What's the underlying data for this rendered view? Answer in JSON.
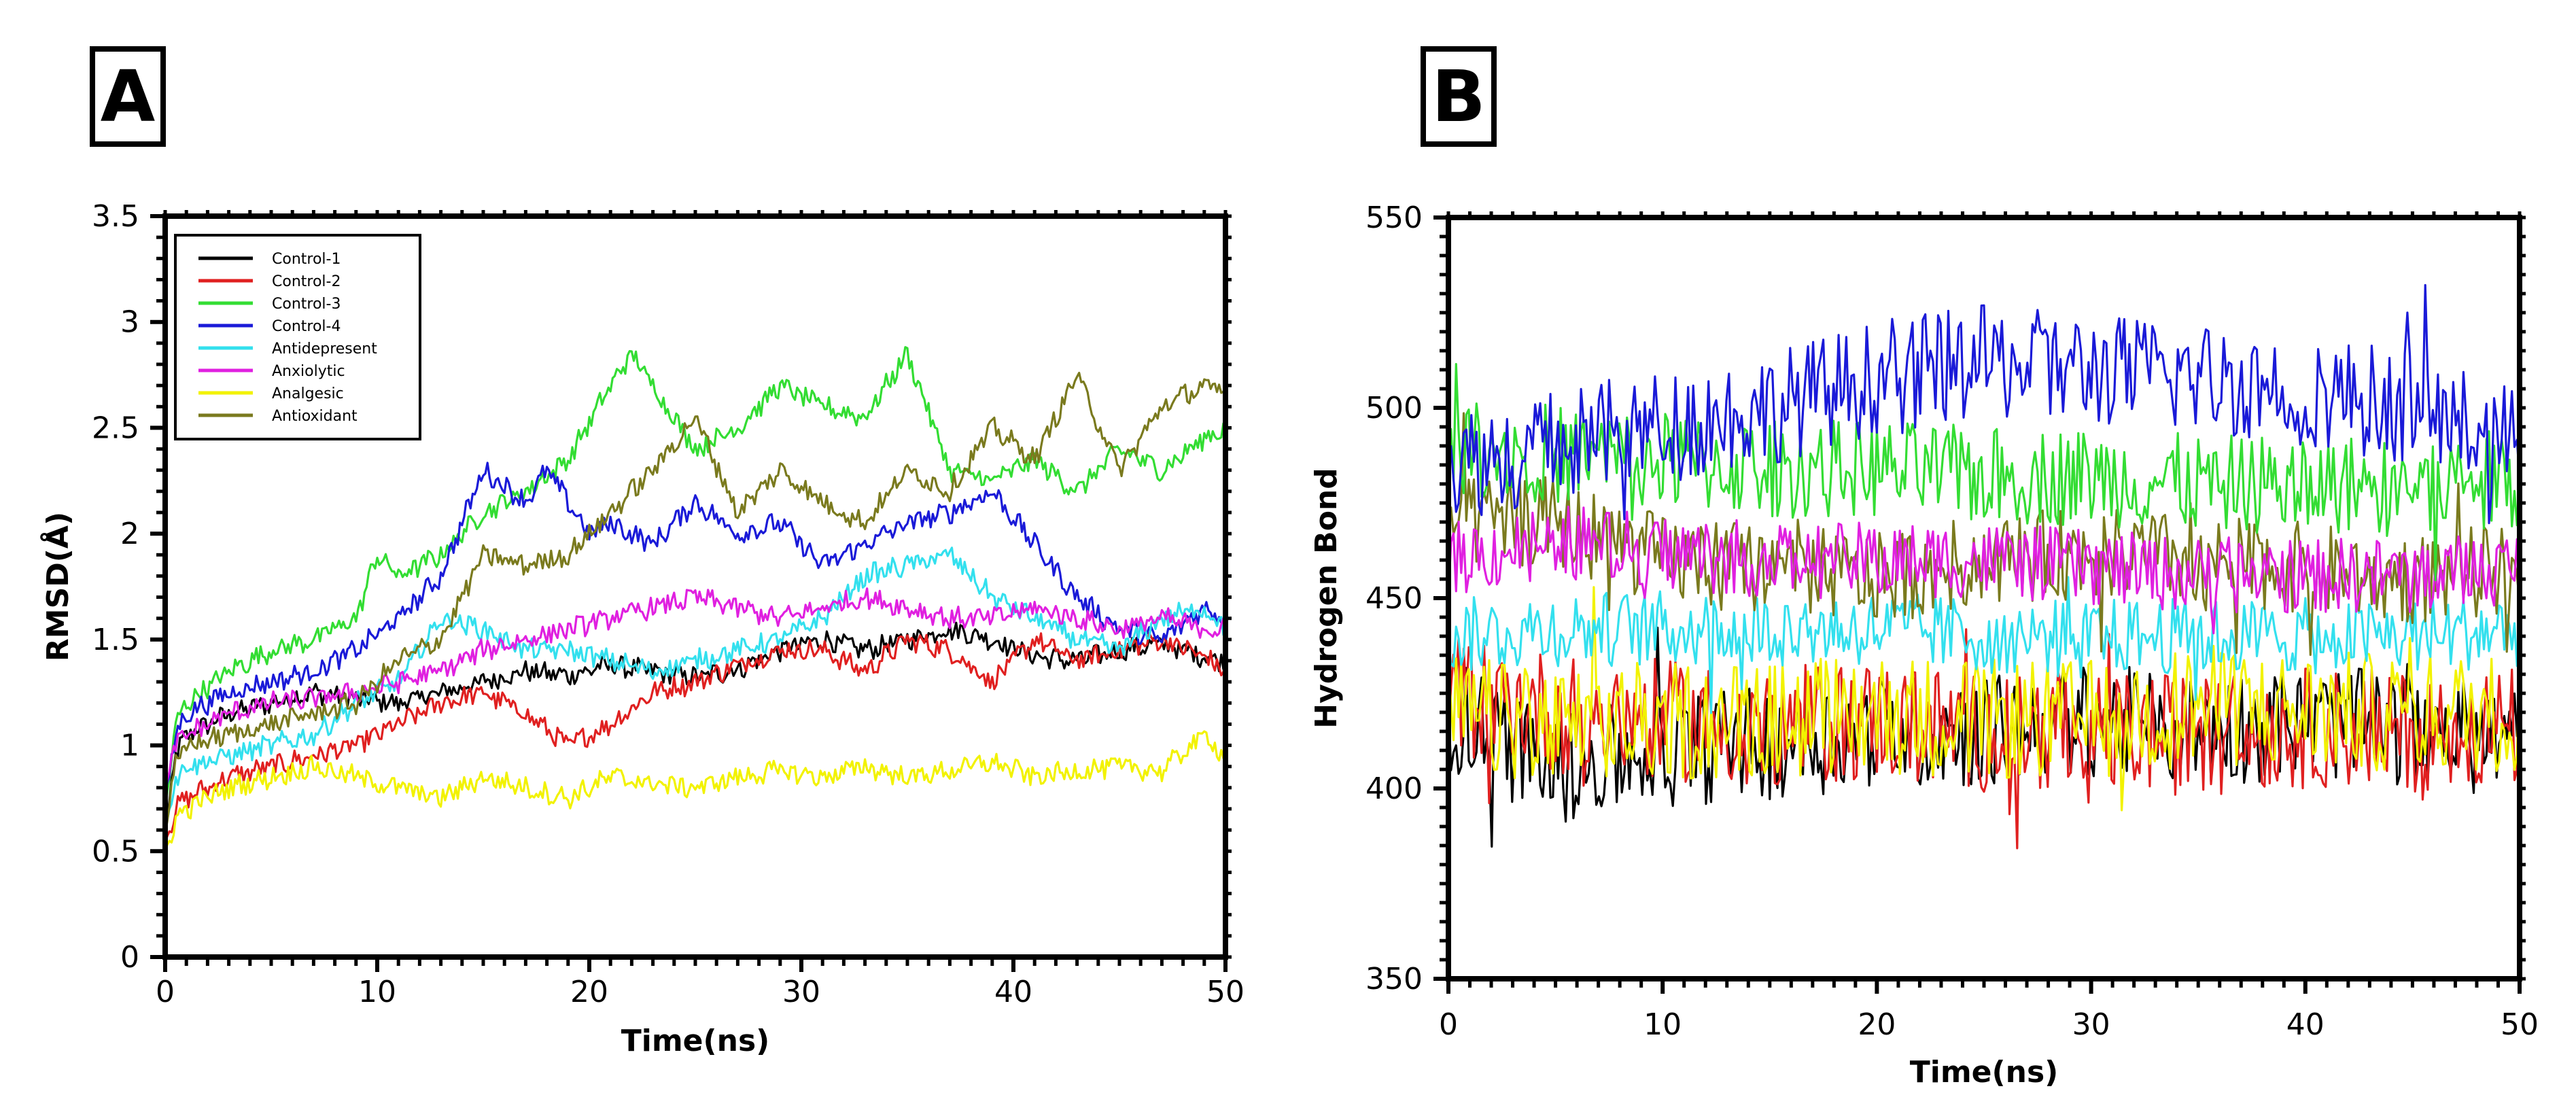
{
  "chart_data": [
    {
      "panel": "A",
      "type": "line",
      "title": "",
      "xlabel": "Time(ns)",
      "ylabel": "RMSD(Å)",
      "xlim": [
        0,
        50
      ],
      "ylim": [
        0,
        3.5
      ],
      "xticks": [
        "0",
        "10",
        "20",
        "30",
        "40",
        "50"
      ],
      "yticks": [
        "0",
        "0.5",
        "1",
        "1.5",
        "2",
        "2.5",
        "3",
        "3.5"
      ],
      "legend_position": "top-left",
      "grid": false,
      "series": [
        {
          "name": "Control-1",
          "color": "#000000",
          "x": [
            0,
            0.5,
            1,
            3,
            5,
            7,
            9,
            11,
            13,
            15,
            17,
            19,
            21,
            23,
            25,
            27,
            29,
            31,
            33,
            35,
            37,
            39,
            41,
            43,
            45,
            47,
            49,
            50
          ],
          "y": [
            0.6,
            0.95,
            1.05,
            1.15,
            1.2,
            1.25,
            1.22,
            1.2,
            1.25,
            1.3,
            1.35,
            1.33,
            1.38,
            1.35,
            1.32,
            1.36,
            1.45,
            1.5,
            1.45,
            1.5,
            1.55,
            1.5,
            1.42,
            1.4,
            1.45,
            1.48,
            1.42,
            1.4
          ]
        },
        {
          "name": "Control-2",
          "color": "#e02020",
          "x": [
            0,
            0.5,
            1,
            3,
            5,
            7,
            9,
            11,
            13,
            15,
            17,
            19,
            21,
            23,
            25,
            27,
            29,
            31,
            33,
            35,
            37,
            39,
            41,
            43,
            45,
            47,
            49,
            50
          ],
          "y": [
            0.55,
            0.7,
            0.75,
            0.85,
            0.9,
            0.95,
            1.0,
            1.1,
            1.2,
            1.25,
            1.15,
            1.0,
            1.1,
            1.25,
            1.3,
            1.38,
            1.45,
            1.45,
            1.35,
            1.5,
            1.45,
            1.3,
            1.5,
            1.4,
            1.45,
            1.5,
            1.42,
            1.35
          ]
        },
        {
          "name": "Control-3",
          "color": "#33dd33",
          "x": [
            0,
            0.5,
            1,
            3,
            5,
            7,
            9,
            10,
            11,
            13,
            15,
            17,
            19,
            21,
            22,
            23,
            25,
            27,
            29,
            31,
            33,
            35,
            37,
            39,
            41,
            43,
            45,
            47,
            49,
            50
          ],
          "y": [
            0.7,
            1.1,
            1.2,
            1.35,
            1.45,
            1.5,
            1.6,
            1.9,
            1.8,
            1.9,
            2.1,
            2.2,
            2.35,
            2.7,
            2.85,
            2.7,
            2.4,
            2.5,
            2.7,
            2.6,
            2.55,
            2.85,
            2.3,
            2.25,
            2.35,
            2.2,
            2.4,
            2.3,
            2.45,
            2.5
          ]
        },
        {
          "name": "Control-4",
          "color": "#1a1ad8",
          "x": [
            0,
            0.5,
            1,
            3,
            5,
            7,
            9,
            11,
            13,
            15,
            17,
            18,
            20,
            21,
            23,
            25,
            27,
            29,
            31,
            33,
            35,
            37,
            39,
            41,
            43,
            45,
            47,
            49,
            50
          ],
          "y": [
            0.75,
            1.05,
            1.15,
            1.25,
            1.3,
            1.35,
            1.45,
            1.6,
            1.8,
            2.3,
            2.15,
            2.3,
            2.0,
            2.05,
            1.95,
            2.15,
            2.0,
            2.05,
            1.85,
            1.95,
            2.05,
            2.1,
            2.2,
            1.95,
            1.7,
            1.55,
            1.5,
            1.65,
            1.6
          ]
        },
        {
          "name": "Antidepresent",
          "color": "#33e0ee",
          "x": [
            0,
            0.5,
            1,
            3,
            5,
            7,
            9,
            11,
            13,
            15,
            17,
            19,
            21,
            23,
            25,
            27,
            29,
            31,
            33,
            35,
            37,
            39,
            41,
            43,
            45,
            47,
            49,
            50
          ],
          "y": [
            0.6,
            0.85,
            0.9,
            0.95,
            1.0,
            1.05,
            1.2,
            1.3,
            1.6,
            1.55,
            1.45,
            1.45,
            1.4,
            1.35,
            1.4,
            1.45,
            1.5,
            1.6,
            1.8,
            1.85,
            1.9,
            1.7,
            1.6,
            1.5,
            1.45,
            1.6,
            1.65,
            1.55
          ]
        },
        {
          "name": "Anxiolytic",
          "color": "#e020e0",
          "x": [
            0,
            0.5,
            1,
            3,
            5,
            7,
            9,
            11,
            13,
            15,
            17,
            19,
            21,
            23,
            25,
            27,
            29,
            31,
            33,
            35,
            37,
            39,
            41,
            43,
            45,
            47,
            49,
            50
          ],
          "y": [
            0.8,
            1.0,
            1.05,
            1.15,
            1.2,
            1.22,
            1.25,
            1.3,
            1.35,
            1.45,
            1.5,
            1.55,
            1.6,
            1.65,
            1.7,
            1.65,
            1.6,
            1.65,
            1.7,
            1.65,
            1.6,
            1.6,
            1.65,
            1.6,
            1.55,
            1.6,
            1.55,
            1.55
          ]
        },
        {
          "name": "Analgesic",
          "color": "#f2f200",
          "x": [
            0,
            0.5,
            1,
            3,
            5,
            7,
            9,
            11,
            13,
            15,
            17,
            19,
            21,
            23,
            25,
            27,
            29,
            31,
            33,
            35,
            37,
            39,
            41,
            43,
            45,
            47,
            49,
            50
          ],
          "y": [
            0.5,
            0.65,
            0.7,
            0.8,
            0.85,
            0.9,
            0.85,
            0.8,
            0.75,
            0.85,
            0.8,
            0.75,
            0.85,
            0.82,
            0.8,
            0.85,
            0.88,
            0.85,
            0.9,
            0.85,
            0.88,
            0.92,
            0.85,
            0.88,
            0.9,
            0.88,
            1.05,
            0.95
          ]
        },
        {
          "name": "Antioxidant",
          "color": "#7a7a1e",
          "x": [
            0,
            0.5,
            1,
            3,
            5,
            7,
            9,
            11,
            13,
            15,
            17,
            19,
            21,
            23,
            25,
            27,
            29,
            31,
            33,
            35,
            37,
            39,
            41,
            43,
            45,
            47,
            49,
            50
          ],
          "y": [
            0.6,
            0.9,
            1.0,
            1.05,
            1.1,
            1.15,
            1.2,
            1.4,
            1.5,
            1.9,
            1.85,
            1.9,
            2.1,
            2.3,
            2.55,
            2.1,
            2.3,
            2.15,
            2.05,
            2.3,
            2.2,
            2.5,
            2.35,
            2.75,
            2.3,
            2.6,
            2.7,
            2.65
          ]
        }
      ]
    },
    {
      "panel": "B",
      "type": "line",
      "title": "",
      "xlabel": "Time(ns)",
      "ylabel": "Hydrogen Bond",
      "xlim": [
        0,
        50
      ],
      "ylim": [
        350,
        550
      ],
      "xticks": [
        "0",
        "10",
        "20",
        "30",
        "40",
        "50"
      ],
      "yticks": [
        "350",
        "400",
        "450",
        "500",
        "550"
      ],
      "legend_position": "none",
      "grid": false,
      "series": [
        {
          "name": "Control-1",
          "color": "#000000",
          "x": [
            0,
            5,
            10,
            15,
            20,
            25,
            30,
            35,
            40,
            45,
            50
          ],
          "y": [
            420,
            405,
            410,
            412,
            415,
            415,
            418,
            415,
            418,
            415,
            412
          ],
          "spread": 15
        },
        {
          "name": "Control-2",
          "color": "#e02020",
          "x": [
            0,
            5,
            10,
            15,
            20,
            25,
            30,
            35,
            40,
            45,
            50
          ],
          "y": [
            425,
            420,
            418,
            416,
            418,
            415,
            415,
            414,
            416,
            415,
            416
          ],
          "spread": 16
        },
        {
          "name": "Analgesic",
          "color": "#f2f200",
          "x": [
            0,
            5,
            10,
            15,
            20,
            25,
            30,
            35,
            40,
            45,
            50
          ],
          "y": [
            420,
            415,
            418,
            418,
            420,
            418,
            418,
            422,
            420,
            420,
            420
          ],
          "spread": 16
        },
        {
          "name": "Antidepresent",
          "color": "#33e0ee",
          "x": [
            0,
            5,
            10,
            15,
            20,
            25,
            30,
            35,
            40,
            45,
            50
          ],
          "y": [
            440,
            442,
            442,
            442,
            442,
            440,
            440,
            440,
            440,
            440,
            442
          ],
          "spread": 10
        },
        {
          "name": "Antioxidant",
          "color": "#7a7a1e",
          "x": [
            0,
            5,
            10,
            15,
            20,
            25,
            30,
            35,
            40,
            45,
            50
          ],
          "y": [
            470,
            470,
            460,
            458,
            455,
            460,
            462,
            460,
            458,
            455,
            458
          ],
          "spread": 12
        },
        {
          "name": "Anxiolytic",
          "color": "#e020e0",
          "x": [
            0,
            5,
            10,
            15,
            20,
            25,
            30,
            35,
            40,
            45,
            50
          ],
          "y": [
            460,
            465,
            462,
            460,
            460,
            460,
            458,
            456,
            456,
            456,
            458
          ],
          "spread": 10
        },
        {
          "name": "Control-3",
          "color": "#33dd33",
          "x": [
            0,
            5,
            10,
            15,
            20,
            25,
            30,
            35,
            40,
            45,
            50
          ],
          "y": [
            490,
            488,
            486,
            484,
            484,
            482,
            482,
            480,
            480,
            480,
            482
          ],
          "spread": 13
        },
        {
          "name": "Control-4",
          "color": "#1a1ad8",
          "x": [
            0,
            5,
            10,
            15,
            20,
            25,
            30,
            35,
            40,
            45,
            50
          ],
          "y": [
            485,
            490,
            495,
            500,
            508,
            512,
            510,
            508,
            505,
            500,
            490
          ],
          "spread": 15
        }
      ]
    }
  ],
  "labels": {
    "panel_a": "A",
    "panel_b": "B"
  }
}
